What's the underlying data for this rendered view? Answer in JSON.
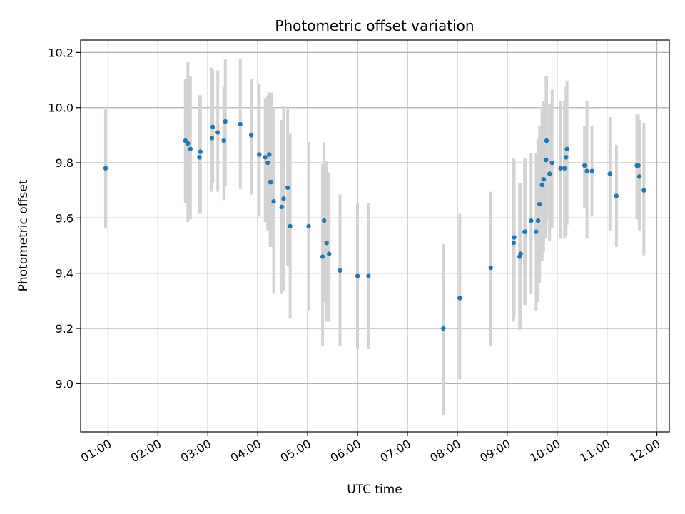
{
  "chart_data": {
    "type": "scatter",
    "title": "Photometric offset variation",
    "xlabel": "UTC time",
    "ylabel": "Photometric offset",
    "x_unit": "hours since 00:00 UTC",
    "xlim": [
      0.45,
      12.25
    ],
    "ylim": [
      8.825,
      10.245
    ],
    "grid": true,
    "xticks": [
      1,
      2,
      3,
      4,
      5,
      6,
      7,
      8,
      9,
      10,
      11,
      12
    ],
    "xtick_labels": [
      "01:00",
      "02:00",
      "03:00",
      "04:00",
      "05:00",
      "06:00",
      "07:00",
      "08:00",
      "09:00",
      "10:00",
      "11:00",
      "12:00"
    ],
    "yticks": [
      9.0,
      9.2,
      9.4,
      9.6,
      9.8,
      10.0,
      10.2
    ],
    "ytick_labels": [
      "9.0",
      "9.2",
      "9.4",
      "9.6",
      "9.8",
      "10.0",
      "10.2"
    ],
    "marker_color": "#1f77b4",
    "errorbar_color": "#d3d3d3",
    "series": [
      {
        "name": "Photometric offset",
        "x": [
          0.95,
          2.55,
          2.6,
          2.65,
          2.83,
          2.85,
          3.08,
          3.1,
          3.2,
          3.32,
          3.35,
          3.65,
          3.87,
          4.03,
          4.15,
          4.2,
          4.23,
          4.25,
          4.27,
          4.32,
          4.48,
          4.52,
          4.6,
          4.65,
          5.02,
          5.3,
          5.33,
          5.38,
          5.43,
          5.65,
          6.0,
          6.22,
          7.72,
          8.05,
          8.67,
          9.13,
          9.14,
          9.25,
          9.27,
          9.35,
          9.36,
          9.48,
          9.58,
          9.62,
          9.65,
          9.7,
          9.73,
          9.78,
          9.79,
          9.85,
          9.9,
          10.07,
          10.15,
          10.18,
          10.2,
          10.55,
          10.6,
          10.7,
          11.06,
          11.19,
          11.6,
          11.63,
          11.65,
          11.74
        ],
        "y": [
          9.78,
          9.88,
          9.87,
          9.85,
          9.82,
          9.84,
          9.89,
          9.93,
          9.91,
          9.88,
          9.95,
          9.94,
          9.9,
          9.83,
          9.82,
          9.8,
          9.83,
          9.73,
          9.73,
          9.66,
          9.64,
          9.67,
          9.71,
          9.57,
          9.57,
          9.46,
          9.59,
          9.51,
          9.47,
          9.41,
          9.39,
          9.39,
          9.2,
          9.31,
          9.42,
          9.51,
          9.53,
          9.46,
          9.47,
          9.55,
          9.55,
          9.59,
          9.55,
          9.59,
          9.65,
          9.72,
          9.74,
          9.81,
          9.88,
          9.76,
          9.8,
          9.78,
          9.78,
          9.82,
          9.85,
          9.79,
          9.77,
          9.77,
          9.76,
          9.68,
          9.79,
          9.79,
          9.75,
          9.7
        ],
        "err_low": [
          9.565,
          9.655,
          9.585,
          9.595,
          9.615,
          9.615,
          9.695,
          9.725,
          9.695,
          9.665,
          9.715,
          9.705,
          9.685,
          9.605,
          9.585,
          9.555,
          9.575,
          9.495,
          9.495,
          9.325,
          9.325,
          9.335,
          9.425,
          9.235,
          9.265,
          9.135,
          9.295,
          9.225,
          9.225,
          9.135,
          9.125,
          9.125,
          8.885,
          9.015,
          9.135,
          9.225,
          9.245,
          9.195,
          9.205,
          9.285,
          9.285,
          9.325,
          9.265,
          9.295,
          9.365,
          9.445,
          9.475,
          9.525,
          9.595,
          9.515,
          9.565,
          9.525,
          9.525,
          9.535,
          9.575,
          9.635,
          9.525,
          9.605,
          9.555,
          9.495,
          9.595,
          9.595,
          9.555,
          9.465
        ],
        "err_high": [
          9.995,
          10.105,
          10.165,
          10.115,
          10.045,
          10.045,
          10.145,
          10.135,
          10.135,
          10.075,
          10.175,
          10.175,
          10.105,
          10.085,
          10.035,
          10.045,
          10.055,
          10.055,
          10.055,
          9.995,
          9.955,
          10.005,
          9.995,
          9.905,
          9.875,
          9.795,
          9.875,
          9.805,
          9.765,
          9.685,
          9.655,
          9.655,
          9.505,
          9.615,
          9.695,
          9.815,
          9.805,
          9.725,
          9.725,
          9.815,
          9.815,
          9.835,
          9.835,
          9.885,
          9.935,
          9.995,
          10.025,
          10.115,
          10.115,
          10.015,
          10.065,
          10.025,
          10.025,
          10.075,
          10.095,
          9.935,
          10.025,
          9.935,
          9.965,
          9.865,
          9.975,
          9.975,
          9.955,
          9.945
        ]
      }
    ]
  }
}
